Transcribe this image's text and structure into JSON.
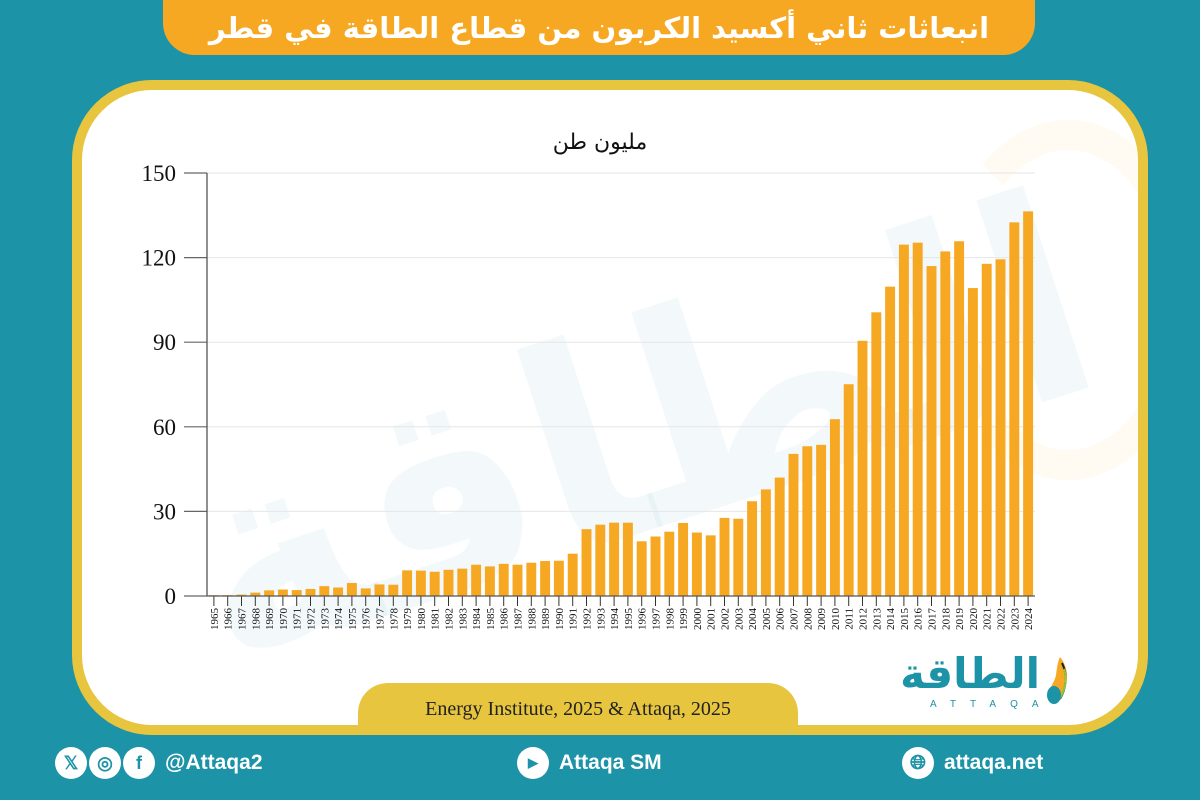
{
  "header": {
    "title": "انبعاثات ثاني أكسيد الكربون من قطاع الطاقة في قطر"
  },
  "chart": {
    "unit_label": "مليون طن"
  },
  "source": {
    "text": "Energy Institute, 2025 & Attaqa, 2025"
  },
  "logo": {
    "arabic": "الطاقة",
    "english": "ATTAQA"
  },
  "footer": {
    "social_handle": "@Attaqa2",
    "youtube": "Attaqa SM",
    "website": "attaqa.net",
    "icons": [
      "x-icon",
      "instagram-icon",
      "facebook-icon",
      "youtube-icon",
      "globe-icon"
    ]
  },
  "colors": {
    "background": "#1c93a6",
    "banner": "#f7a823",
    "bar": "#f7a823",
    "card_border": "#e7c53f",
    "source_pill": "#e7c53f"
  },
  "chart_data": {
    "type": "bar",
    "title": "انبعاثات ثاني أكسيد الكربون من قطاع الطاقة في قطر",
    "xlabel": "",
    "ylabel": "مليون طن",
    "ylim": [
      0,
      150
    ],
    "yticks": [
      0,
      30,
      60,
      90,
      120,
      150
    ],
    "grid": true,
    "legend": null,
    "categories": [
      "1965",
      "1966",
      "1967",
      "1968",
      "1969",
      "1970",
      "1971",
      "1972",
      "1973",
      "1974",
      "1975",
      "1976",
      "1977",
      "1978",
      "1979",
      "1980",
      "1981",
      "1982",
      "1983",
      "1984",
      "1985",
      "1986",
      "1987",
      "1988",
      "1989",
      "1990",
      "1991",
      "1992",
      "1993",
      "1994",
      "1995",
      "1996",
      "1997",
      "1998",
      "1999",
      "2000",
      "2001",
      "2002",
      "2003",
      "2004",
      "2005",
      "2006",
      "2007",
      "2008",
      "2009",
      "2010",
      "2011",
      "2012",
      "2013",
      "2014",
      "2015",
      "2016",
      "2017",
      "2018",
      "2019",
      "2020",
      "2021",
      "2022",
      "2023",
      "2024"
    ],
    "values": [
      0.3,
      0.3,
      0.5,
      1.2,
      2.0,
      2.3,
      2.1,
      2.5,
      3.5,
      3.0,
      4.6,
      2.7,
      4.1,
      4.0,
      9.1,
      9.0,
      8.6,
      9.3,
      9.7,
      11.1,
      10.5,
      11.4,
      11.1,
      11.8,
      12.4,
      12.5,
      15.0,
      23.7,
      25.3,
      26.0,
      26.0,
      19.4,
      21.1,
      22.8,
      25.9,
      22.5,
      21.5,
      27.7,
      27.4,
      33.6,
      37.8,
      42.0,
      50.4,
      53.1,
      53.6,
      62.7,
      75.1,
      90.5,
      100.6,
      109.7,
      124.6,
      125.3,
      117.0,
      122.2,
      125.8,
      109.2,
      117.8,
      119.4,
      132.5,
      136.4
    ]
  }
}
